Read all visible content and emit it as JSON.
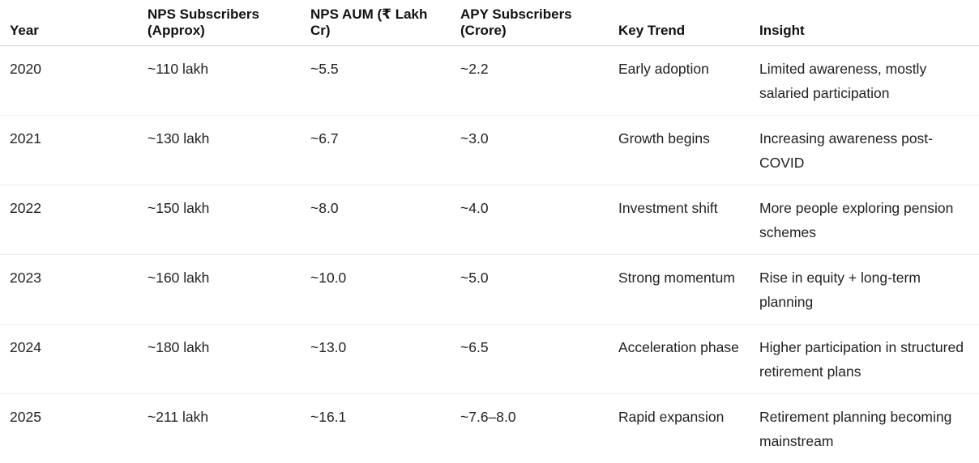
{
  "table": {
    "headers": [
      "Year",
      "NPS Subscribers (Approx)",
      "NPS AUM (₹ Lakh Cr)",
      "APY Subscribers (Crore)",
      "Key Trend",
      "Insight"
    ],
    "rows": [
      [
        "2020",
        "~110 lakh",
        "~5.5",
        "~2.2",
        "Early adoption",
        "Limited awareness, mostly salaried participation"
      ],
      [
        "2021",
        "~130 lakh",
        "~6.7",
        "~3.0",
        "Growth begins",
        "Increasing awareness post-COVID"
      ],
      [
        "2022",
        "~150 lakh",
        "~8.0",
        "~4.0",
        "Investment shift",
        "More people exploring pension schemes"
      ],
      [
        "2023",
        "~160 lakh",
        "~10.0",
        "~5.0",
        "Strong momentum",
        "Rise in equity + long-term planning"
      ],
      [
        "2024",
        "~180 lakh",
        "~13.0",
        "~6.5",
        "Acceleration phase",
        "Higher participation in structured retirement plans"
      ],
      [
        "2025",
        "~211 lakh",
        "~16.1",
        "~7.6–8.0",
        "Rapid expansion",
        "Retirement planning becoming mainstream"
      ]
    ]
  }
}
